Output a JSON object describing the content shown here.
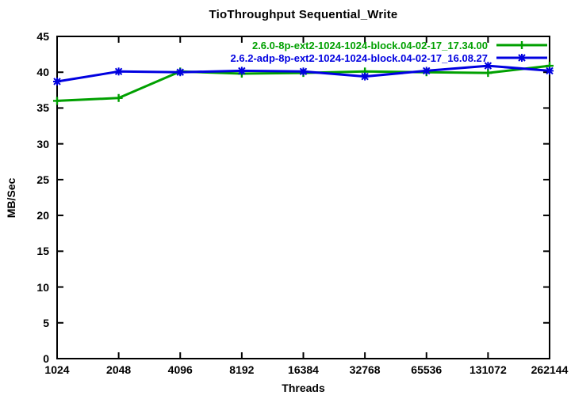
{
  "chart_data": {
    "type": "line",
    "title": "TioThroughput Sequential_Write",
    "xlabel": "Threads",
    "ylabel": "MB/Sec",
    "x_scale": "log2-equal-spacing",
    "categories": [
      1024,
      2048,
      4096,
      8192,
      16384,
      32768,
      65536,
      131072,
      262144
    ],
    "x_tick_labels": [
      "1024",
      "2048",
      "4096",
      "8192",
      "16384",
      "32768",
      "65536",
      "131072",
      "262144"
    ],
    "y_ticks": [
      0,
      5,
      10,
      15,
      20,
      25,
      30,
      35,
      40,
      45
    ],
    "ylim": [
      0,
      45
    ],
    "grid": false,
    "legend_position": "top-right-inside",
    "border_color": "#000000",
    "background_color": "#ffffff",
    "series": [
      {
        "name": "2.6.0-8p-ext2-1024-1024-block.04-02-17_17.34.00",
        "color": "#00a000",
        "marker": "plus",
        "values": [
          36.0,
          36.4,
          40.1,
          39.8,
          39.9,
          40.1,
          40.0,
          39.9,
          40.9
        ]
      },
      {
        "name": "2.6.2-adp-8p-ext2-1024-1024-block.04-02-17_16.08.27",
        "color": "#0000e0",
        "marker": "asterisk",
        "values": [
          38.7,
          40.1,
          40.0,
          40.2,
          40.1,
          39.4,
          40.2,
          40.9,
          40.2
        ]
      }
    ]
  }
}
